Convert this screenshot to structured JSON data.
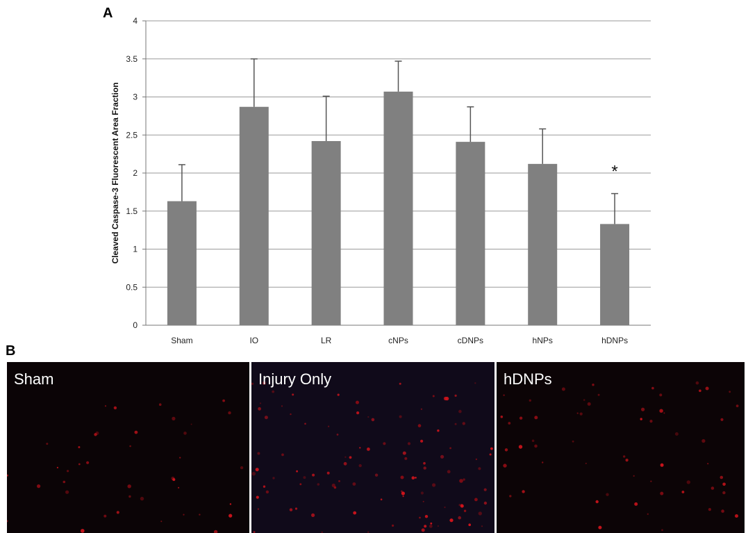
{
  "panel_a_label": "A",
  "panel_b_label": "B",
  "chart_data": {
    "type": "bar",
    "title": "",
    "xlabel": "",
    "ylabel": "Cleaved Caspase-3  Fluorescent Area Fraction",
    "ylim": [
      0,
      4
    ],
    "yticks": [
      "0",
      "0.5",
      "1",
      "1.5",
      "2",
      "2.5",
      "3",
      "3.5",
      "4"
    ],
    "categories": [
      "Sham",
      "IO",
      "LR",
      "cNPs",
      "cDNPs",
      "hNPs",
      "hDNPs"
    ],
    "values": [
      1.63,
      2.87,
      2.42,
      3.07,
      2.41,
      2.12,
      1.33
    ],
    "error_upper": [
      0.48,
      0.63,
      0.59,
      0.4,
      0.46,
      0.46,
      0.4
    ],
    "bar_color": "#808080",
    "grid": true,
    "annotations": [
      {
        "category": "hDNPs",
        "text": "*"
      }
    ]
  },
  "micrographs": [
    {
      "label": "Sham",
      "tint": "#0b0406"
    },
    {
      "label": "Injury Only",
      "tint": "#100a1a"
    },
    {
      "label": "hDNPs",
      "tint": "#0c0406"
    }
  ]
}
